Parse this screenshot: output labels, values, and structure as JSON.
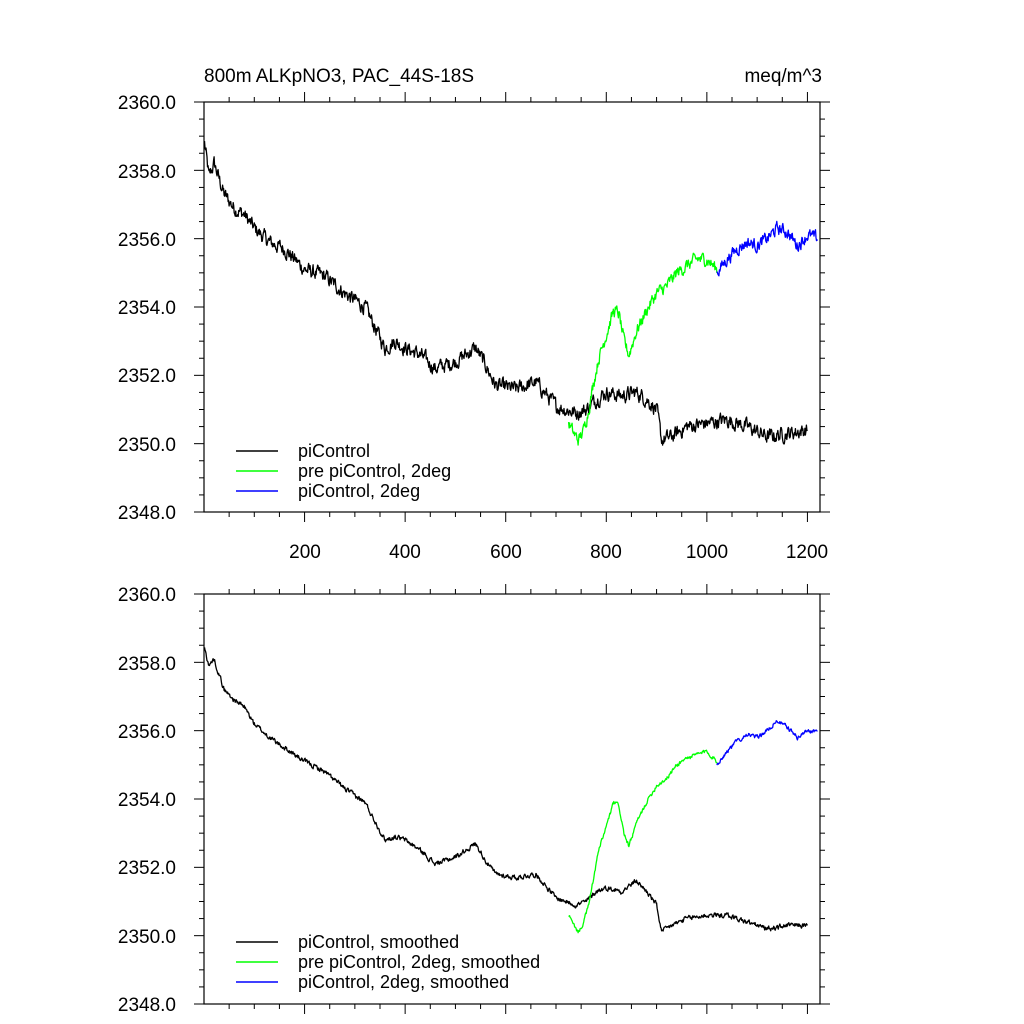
{
  "chart_data": [
    {
      "type": "line",
      "title": "800m ALKpNO3, PAC_44S-18S",
      "units": "meq/m^3",
      "xlim": [
        0,
        1225
      ],
      "ylim": [
        2348.0,
        2360.0
      ],
      "yticks": [
        "2348.0",
        "2350.0",
        "2352.0",
        "2354.0",
        "2356.0",
        "2358.0",
        "2360.0"
      ],
      "xticks": [
        "200",
        "400",
        "600",
        "800",
        "1000",
        "1200"
      ],
      "legend_position": "bottom-left",
      "series": [
        {
          "name": "piControl",
          "color": "#000000",
          "noise": 0.35,
          "x": [
            1,
            10,
            20,
            40,
            60,
            80,
            100,
            130,
            160,
            200,
            240,
            280,
            320,
            360,
            380,
            400,
            430,
            460,
            500,
            540,
            560,
            580,
            620,
            660,
            700,
            720,
            740,
            760,
            780,
            800,
            830,
            860,
            880,
            900,
            910,
            930,
            960,
            1000,
            1040,
            1080,
            1120,
            1160,
            1200
          ],
          "y": [
            2358.8,
            2357.8,
            2358.2,
            2357.3,
            2356.9,
            2356.7,
            2356.3,
            2355.9,
            2355.7,
            2355.1,
            2354.9,
            2354.4,
            2354.0,
            2352.8,
            2353.0,
            2352.8,
            2352.6,
            2352.2,
            2352.4,
            2352.8,
            2352.3,
            2351.7,
            2351.6,
            2351.8,
            2351.1,
            2351.0,
            2350.9,
            2351.0,
            2351.3,
            2351.5,
            2351.4,
            2351.5,
            2351.3,
            2351.0,
            2350.1,
            2350.2,
            2350.5,
            2350.6,
            2350.7,
            2350.5,
            2350.2,
            2350.3,
            2350.4
          ]
        },
        {
          "name": "pre piControl, 2deg",
          "color": "#00ff00",
          "noise": 0.3,
          "x": [
            725,
            735,
            745,
            755,
            765,
            775,
            785,
            800,
            815,
            825,
            835,
            845,
            860,
            880,
            900,
            920,
            940,
            960,
            980,
            1000,
            1020
          ],
          "y": [
            2350.6,
            2350.3,
            2350.1,
            2350.4,
            2351.0,
            2351.8,
            2352.5,
            2353.2,
            2353.9,
            2353.8,
            2353.0,
            2352.6,
            2353.3,
            2353.9,
            2354.4,
            2354.6,
            2355.0,
            2355.2,
            2355.4,
            2355.4,
            2355.1
          ]
        },
        {
          "name": "piControl, 2deg",
          "color": "#0000ff",
          "noise": 0.3,
          "x": [
            1020,
            1040,
            1060,
            1080,
            1100,
            1120,
            1140,
            1160,
            1180,
            1200,
            1220
          ],
          "y": [
            2355.0,
            2355.4,
            2355.7,
            2355.9,
            2355.8,
            2356.0,
            2356.3,
            2356.2,
            2355.8,
            2356.1,
            2356.0
          ]
        }
      ]
    },
    {
      "type": "line",
      "xlim": [
        0,
        1225
      ],
      "ylim": [
        2348.0,
        2360.0
      ],
      "yticks": [
        "2348.0",
        "2350.0",
        "2352.0",
        "2354.0",
        "2356.0",
        "2358.0",
        "2360.0"
      ],
      "legend_position": "bottom-left",
      "series": [
        {
          "name": "piControl, smoothed",
          "color": "#000000",
          "noise": 0.12,
          "x": [
            1,
            10,
            20,
            40,
            60,
            80,
            100,
            130,
            160,
            200,
            240,
            280,
            320,
            360,
            380,
            400,
            430,
            460,
            500,
            540,
            560,
            580,
            620,
            660,
            700,
            720,
            740,
            760,
            780,
            800,
            830,
            860,
            880,
            900,
            910,
            930,
            960,
            1000,
            1040,
            1080,
            1120,
            1160,
            1200
          ],
          "y": [
            2358.4,
            2357.9,
            2358.1,
            2357.2,
            2356.9,
            2356.7,
            2356.2,
            2355.8,
            2355.5,
            2355.1,
            2354.8,
            2354.3,
            2353.9,
            2352.8,
            2352.9,
            2352.8,
            2352.5,
            2352.1,
            2352.3,
            2352.7,
            2352.2,
            2351.8,
            2351.7,
            2351.8,
            2351.1,
            2351.0,
            2350.9,
            2351.0,
            2351.3,
            2351.4,
            2351.3,
            2351.6,
            2351.3,
            2350.9,
            2350.1,
            2350.3,
            2350.5,
            2350.6,
            2350.6,
            2350.4,
            2350.2,
            2350.3,
            2350.3
          ]
        },
        {
          "name": "pre piControl, 2deg, smoothed",
          "color": "#00ff00",
          "noise": 0.1,
          "x": [
            725,
            735,
            745,
            755,
            765,
            775,
            785,
            800,
            815,
            825,
            835,
            845,
            860,
            880,
            900,
            920,
            940,
            960,
            980,
            1000,
            1020
          ],
          "y": [
            2350.6,
            2350.3,
            2350.1,
            2350.4,
            2350.9,
            2351.7,
            2352.5,
            2353.2,
            2353.9,
            2353.8,
            2353.0,
            2352.6,
            2353.3,
            2353.9,
            2354.4,
            2354.6,
            2355.0,
            2355.2,
            2355.3,
            2355.4,
            2355.1
          ]
        },
        {
          "name": "piControl, 2deg, smoothed",
          "color": "#0000ff",
          "noise": 0.1,
          "x": [
            1020,
            1040,
            1060,
            1080,
            1100,
            1120,
            1140,
            1160,
            1180,
            1200,
            1220
          ],
          "y": [
            2355.0,
            2355.4,
            2355.7,
            2355.9,
            2355.8,
            2356.0,
            2356.3,
            2356.1,
            2355.8,
            2356.0,
            2356.0
          ]
        }
      ]
    }
  ]
}
